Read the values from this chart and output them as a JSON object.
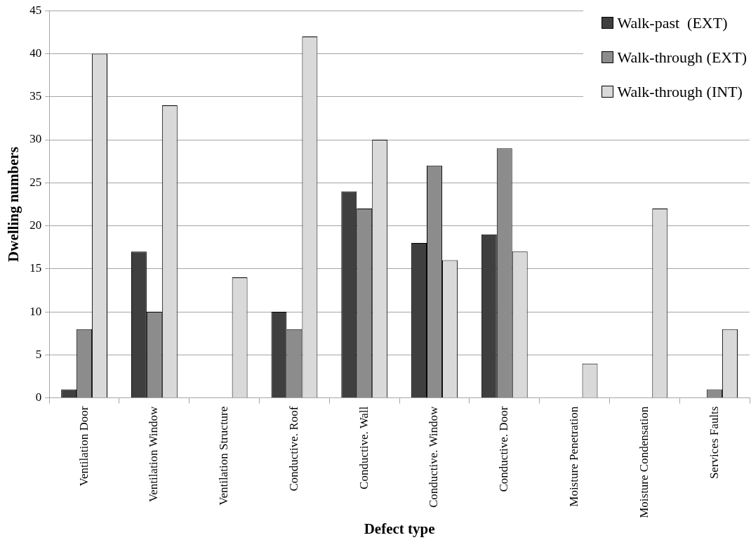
{
  "chart_data": {
    "type": "bar",
    "xlabel": "Defect type",
    "ylabel": "Dwelling numbers",
    "categories": [
      "Ventilation Door",
      "Ventilation Window",
      "Ventilation Structure",
      "Conductive. Roof",
      "Conductive. Wall",
      "Conductive. Window",
      "Conductive. Door",
      "Moisture Penetration",
      "Moisture Condensation",
      "Services Faults"
    ],
    "series": [
      {
        "name": "Walk-past  (EXT)",
        "color": "#3f3f3f",
        "values": [
          1,
          17,
          0,
          10,
          24,
          18,
          19,
          0,
          0,
          0
        ]
      },
      {
        "name": "Walk-through (EXT)",
        "color": "#8c8c8c",
        "values": [
          8,
          10,
          0,
          8,
          22,
          27,
          29,
          0,
          0,
          1
        ]
      },
      {
        "name": "Walk-through (INT)",
        "color": "#d9d9d9",
        "values": [
          40,
          34,
          14,
          42,
          30,
          16,
          17,
          4,
          22,
          8
        ]
      }
    ],
    "ylim": [
      0,
      45
    ],
    "yticks": [
      0,
      5,
      10,
      15,
      20,
      25,
      30,
      35,
      40,
      45
    ],
    "grid": "y",
    "legend": "top right"
  }
}
